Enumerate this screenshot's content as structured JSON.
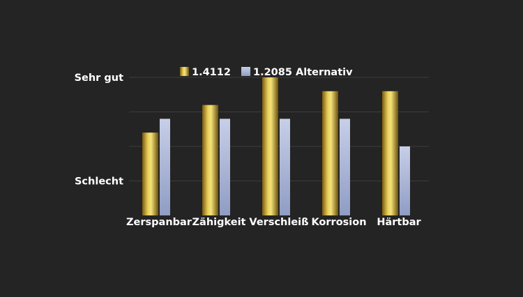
{
  "chart_data": {
    "type": "bar",
    "categories": [
      "Zerspanbar",
      "Zähigkeit",
      "Verschleiß",
      "Korrosion",
      "Härtbar"
    ],
    "series": [
      {
        "name": "1.4112",
        "values": [
          3.0,
          4.0,
          5.0,
          4.5,
          4.5
        ],
        "color": "#c9a227"
      },
      {
        "name": "1.2085 Alternativ",
        "values": [
          3.5,
          3.5,
          3.5,
          3.5,
          2.5
        ],
        "color": "#b8c2de"
      }
    ],
    "ylim": [
      0,
      5
    ],
    "y_tick_labels": [
      {
        "value": 1.25,
        "label": "Schlecht"
      },
      {
        "value": 5.0,
        "label": "Sehr gut"
      }
    ],
    "gridlines": [
      1.25,
      2.5,
      3.75,
      5.0
    ],
    "grid": true,
    "legend_position": "top"
  }
}
